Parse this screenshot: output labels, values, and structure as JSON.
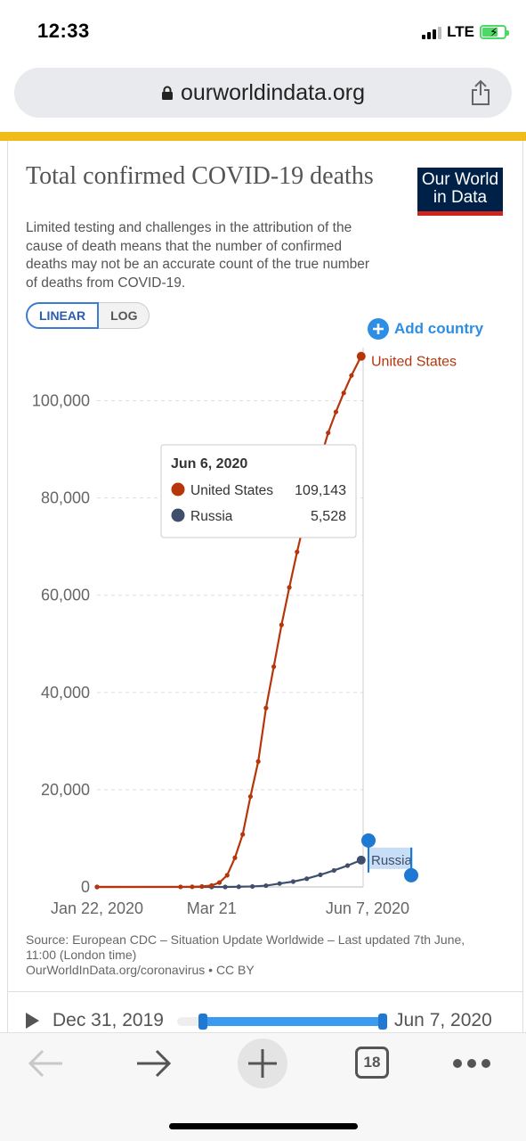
{
  "status": {
    "time": "12:33",
    "network": "LTE",
    "battery_level": 0.7
  },
  "browser": {
    "url": "ourworldindata.org",
    "open_tabs": "18",
    "icons": [
      "lock-icon",
      "share-icon",
      "back-icon",
      "forward-icon",
      "new-tab-icon",
      "tabs-icon",
      "more-icon"
    ]
  },
  "article": {
    "title": "Total confirmed COVID-19 deaths",
    "subtitle": "Limited testing and challenges in the attribution of the cause of death means that the number of confirmed deaths may not be an accurate count of the true number of deaths from COVID-19.",
    "logo_line1": "Our World",
    "logo_line2": "in Data",
    "scale_linear": "LINEAR",
    "scale_log": "LOG",
    "selected_scale": "LINEAR",
    "add_country": "Add country",
    "source": "Source: European CDC – Situation Update Worldwide – Last updated 7th June, 11:00 (London time)",
    "source_line2": "OurWorldInData.org/coronavirus • CC BY"
  },
  "tooltip": {
    "date": "Jun 6, 2020",
    "rows": [
      {
        "name": "United States",
        "value": "109,143"
      },
      {
        "name": "Russia",
        "value": "5,528"
      }
    ]
  },
  "timeline": {
    "start": "Dec 31, 2019",
    "end": "Jun 7, 2020",
    "selected_start_fraction": 0.12,
    "selected_end_fraction": 1.0
  },
  "colors": {
    "us": "#b7350b",
    "russia": "#3e4e6b",
    "accent": "#2d8ee6",
    "brand": "#002147",
    "brand_red": "#ce261e"
  },
  "chart_data": {
    "type": "line",
    "title": "Total confirmed COVID-19 deaths",
    "x_ticks": [
      "Jan 22, 2020",
      "Mar 21",
      "Jun 7, 2020"
    ],
    "y_ticks": [
      "0",
      "20,000",
      "40,000",
      "60,000",
      "80,000",
      "100,000"
    ],
    "ylim": [
      0,
      110000
    ],
    "grid": true,
    "series": [
      {
        "name": "United States",
        "color": "#b7350b",
        "x": [
          "2020-01-22",
          "2020-03-05",
          "2020-03-11",
          "2020-03-16",
          "2020-03-21",
          "2020-03-25",
          "2020-03-29",
          "2020-04-02",
          "2020-04-06",
          "2020-04-10",
          "2020-04-14",
          "2020-04-18",
          "2020-04-22",
          "2020-04-26",
          "2020-04-30",
          "2020-05-04",
          "2020-05-08",
          "2020-05-12",
          "2020-05-16",
          "2020-05-20",
          "2020-05-24",
          "2020-05-28",
          "2020-06-01",
          "2020-06-06"
        ],
        "y": [
          0,
          10,
          30,
          90,
          300,
          900,
          2400,
          6000,
          10800,
          18600,
          25800,
          36800,
          45300,
          53900,
          61600,
          68900,
          75700,
          81800,
          88000,
          93400,
          97700,
          101600,
          105200,
          109143
        ]
      },
      {
        "name": "Russia",
        "color": "#3e4e6b",
        "x": [
          "2020-01-22",
          "2020-03-21",
          "2020-03-28",
          "2020-04-04",
          "2020-04-11",
          "2020-04-18",
          "2020-04-25",
          "2020-05-02",
          "2020-05-09",
          "2020-05-16",
          "2020-05-23",
          "2020-05-30",
          "2020-06-06"
        ],
        "y": [
          0,
          0,
          3,
          40,
          100,
          260,
          700,
          1100,
          1700,
          2500,
          3400,
          4400,
          5528
        ]
      }
    ]
  }
}
